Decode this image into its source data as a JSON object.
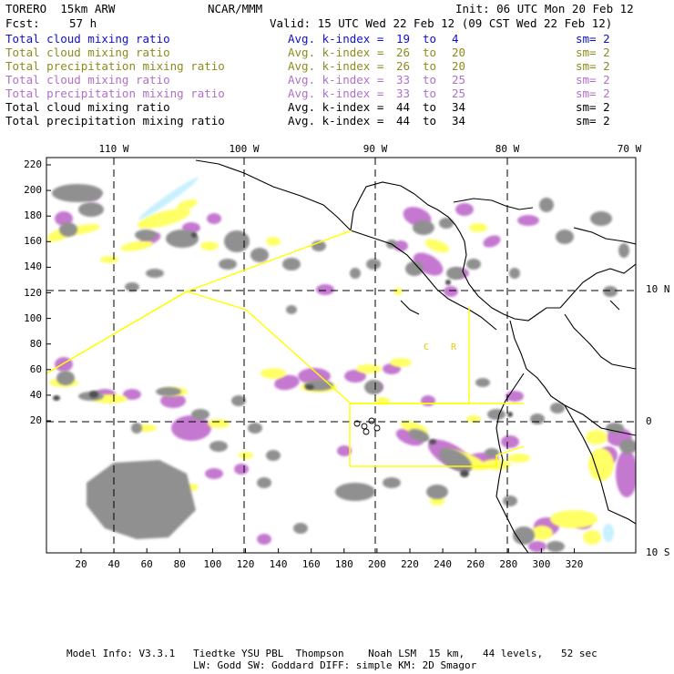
{
  "header": {
    "model": "TORERO  15km ARW",
    "center": "NCAR/MMM",
    "init": "Init: 06 UTC Mon 20 Feb 12",
    "fcst_label": "Fcst:",
    "fcst_value": "57 h",
    "valid": "Valid: 15 UTC Wed 22 Feb 12 (09 CST Wed 22 Feb 12)"
  },
  "legend": [
    {
      "field": "Total cloud mixing ratio",
      "index_label": "Avg. k-index =",
      "from": "19",
      "to_word": "to",
      "to": "4",
      "sm": "sm= 2",
      "color": "#1010c8"
    },
    {
      "field": "Total cloud mixing ratio",
      "index_label": "Avg. k-index =",
      "from": "26",
      "to_word": "to",
      "to": "20",
      "sm": "sm= 2",
      "color": "#8c8c1e"
    },
    {
      "field": "Total precipitation mixing ratio",
      "index_label": "Avg. k-index =",
      "from": "26",
      "to_word": "to",
      "to": "20",
      "sm": "sm= 2",
      "color": "#8c8c1e"
    },
    {
      "field": "Total cloud mixing ratio",
      "index_label": "Avg. k-index =",
      "from": "33",
      "to_word": "to",
      "to": "25",
      "sm": "sm= 2",
      "color": "#b070c8"
    },
    {
      "field": "Total precipitation mixing ratio",
      "index_label": "Avg. k-index =",
      "from": "33",
      "to_word": "to",
      "to": "25",
      "sm": "sm= 2",
      "color": "#b070c8"
    },
    {
      "field": "Total cloud mixing ratio",
      "index_label": "Avg. k-index =",
      "from": "44",
      "to_word": "to",
      "to": "34",
      "sm": "sm= 2",
      "color": "#000000"
    },
    {
      "field": "Total precipitation mixing ratio",
      "index_label": "Avg. k-index =",
      "from": "44",
      "to_word": "to",
      "to": "34",
      "sm": "sm= 2",
      "color": "#000000"
    }
  ],
  "axes": {
    "longitude_labels": [
      "110 W",
      "100 W",
      "90 W",
      "80 W",
      "70 W"
    ],
    "latitude_labels": [
      "10 N",
      "0",
      "10 S"
    ],
    "x_ticks": [
      "20",
      "40",
      "60",
      "80",
      "100",
      "120",
      "140",
      "160",
      "180",
      "200",
      "220",
      "240",
      "260",
      "280",
      "300",
      "320"
    ],
    "y_ticks": [
      "220",
      "200",
      "180",
      "160",
      "140",
      "120",
      "100",
      "80",
      "60",
      "40",
      "20"
    ]
  },
  "map": {
    "region_label_c": "C",
    "region_label_r": "R",
    "colors": {
      "cloud_gray": "#909090",
      "cloud_dark": "#505050",
      "precip_yellow": "#ffff66",
      "precip_purple": "#c478d0",
      "coast": "#000000",
      "grid": "#000000",
      "region_box": "#ffff00",
      "ice": "#c8f0ff"
    }
  },
  "footer": {
    "line1": "Model Info: V3.3.1   Tiedtke YSU PBL  Thompson    Noah LSM  15 km,   44 levels,   52 sec",
    "line2": "LW: Godd SW: Goddard DIFF: simple KM: 2D Smagor"
  }
}
